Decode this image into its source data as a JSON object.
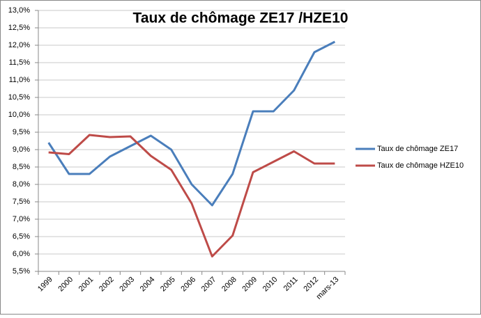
{
  "chart_data": {
    "type": "line",
    "title": "Taux de chômage ZE17 /HZE10",
    "categories": [
      "1999",
      "2000",
      "2001",
      "2002",
      "2003",
      "2004",
      "2005",
      "2006",
      "2007",
      "2008",
      "2009",
      "2010",
      "2011",
      "2012",
      "mars-13"
    ],
    "series": [
      {
        "name": "Taux de chômage ZE17",
        "color": "#4a7ebb",
        "values": [
          9.2,
          8.3,
          8.3,
          8.8,
          9.1,
          9.4,
          9.0,
          8.0,
          7.4,
          8.3,
          10.1,
          10.1,
          10.7,
          11.8,
          12.1
        ]
      },
      {
        "name": "Taux de chômage HZE10",
        "color": "#be4b48",
        "values": [
          8.92,
          8.87,
          9.42,
          9.36,
          9.38,
          8.82,
          8.42,
          7.45,
          5.93,
          6.53,
          8.35,
          8.65,
          8.95,
          8.6,
          8.6
        ]
      }
    ],
    "ylim": [
      5.5,
      13.0
    ],
    "yticks": [
      {
        "value": 5.5,
        "label": "5,5%"
      },
      {
        "value": 6.0,
        "label": "6,0%"
      },
      {
        "value": 6.5,
        "label": "6,5%"
      },
      {
        "value": 7.0,
        "label": "7,0%"
      },
      {
        "value": 7.5,
        "label": "7,5%"
      },
      {
        "value": 8.0,
        "label": "8,0%"
      },
      {
        "value": 8.5,
        "label": "8,5%"
      },
      {
        "value": 9.0,
        "label": "9,0%"
      },
      {
        "value": 9.5,
        "label": "9,5%"
      },
      {
        "value": 10.0,
        "label": "10,0%"
      },
      {
        "value": 10.5,
        "label": "10,5%"
      },
      {
        "value": 11.0,
        "label": "11,0%"
      },
      {
        "value": 11.5,
        "label": "11,5%"
      },
      {
        "value": 12.0,
        "label": "12,0%"
      },
      {
        "value": 12.5,
        "label": "12,5%"
      },
      {
        "value": 13.0,
        "label": "13,0%"
      }
    ],
    "grid": true,
    "legend": "right"
  }
}
